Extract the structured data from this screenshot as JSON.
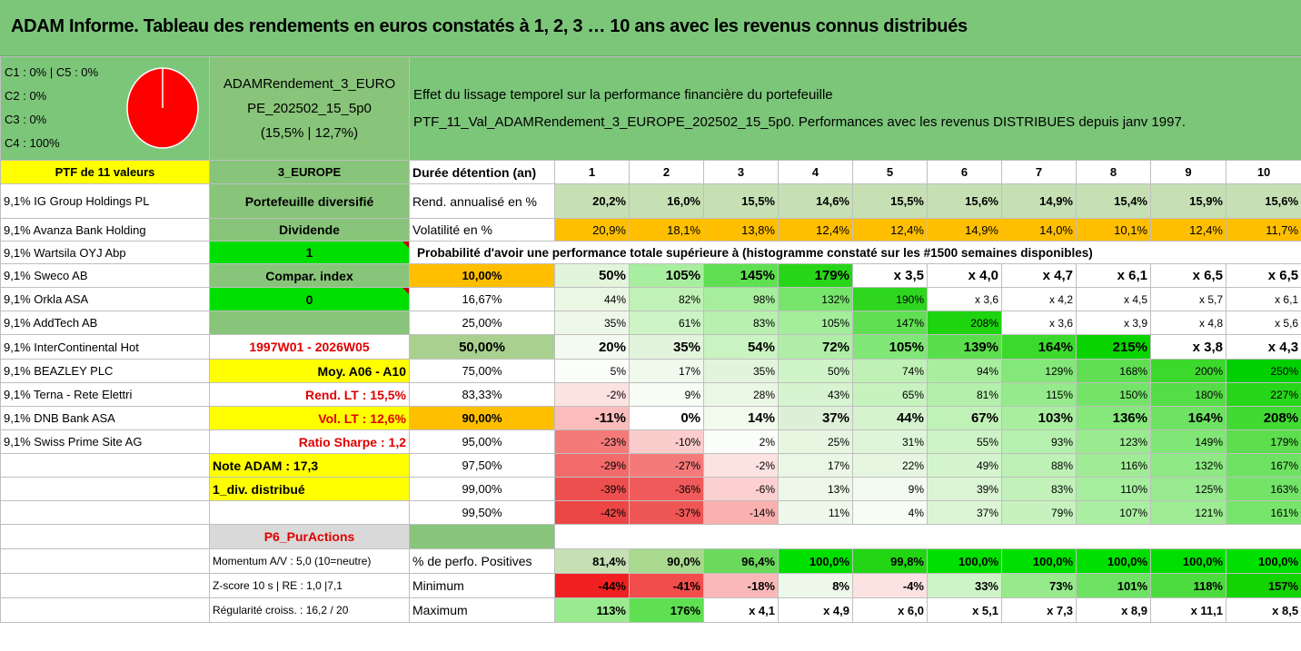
{
  "title": "ADAM Informe. Tableau des rendements en euros constatés à 1, 2, 3 … 10 ans avec les revenus connus distribués",
  "legend": [
    "C1 : 0% | C5 : 0%",
    "C2 : 0%",
    "C3 : 0%",
    "C4 : 100%"
  ],
  "pie": {
    "label": "pie-chart",
    "color": "#ff0000",
    "slices": [
      0,
      0,
      0,
      100
    ]
  },
  "portfolio_name": [
    "ADAMRendement_3_EURO",
    "PE_202502_15_5p0",
    "(15,5% | 12,7%)"
  ],
  "effect_text": [
    "Effet du lissage temporel sur la performance financière du portefeuille",
    "PTF_11_Val_ADAMRendement_3_EUROPE_202502_15_5p0. Performances avec les revenus DISTRIBUES depuis janv 1997."
  ],
  "ptf_label": "PTF de 11 valeurs",
  "region": "3_EUROPE",
  "duration_label": "Durée détention (an)",
  "years": [
    "1",
    "2",
    "3",
    "4",
    "5",
    "6",
    "7",
    "8",
    "9",
    "10"
  ],
  "holdings": [
    "9,1% IG Group Holdings PL",
    "9,1% Avanza Bank Holding",
    "9,1% Wartsila OYJ Abp",
    "9,1% Sweco AB",
    "9,1% Orkla ASA",
    "9,1% AddTech AB",
    "9,1% InterContinental Hot",
    "9,1% BEAZLEY PLC",
    "9,1% Terna - Rete Elettri",
    "9,1% DNB Bank ASA",
    "9,1% Swiss Prime Site AG"
  ],
  "side_labels": {
    "diversified": "Portefeuille diversifié",
    "dividend": "Dividende",
    "dividend_value": "1",
    "compar_index": "Compar. index",
    "compar_value": "0",
    "blank": "",
    "period": "1997W01 - 2026W05",
    "moy": "Moy. A06 - A10",
    "rend_lt": "Rend. LT : 15,5%",
    "vol_lt": "Vol. LT : 12,6%",
    "sharpe": "Ratio Sharpe : 1,2",
    "note": "Note ADAM : 17,3",
    "div": "1_div. distribué",
    "p6": "P6_PurActions",
    "momentum": "Momentum A/V : 5,0 (10=neutre)",
    "zscore": "Z-score 10 s | RE : 1,0 |7,1",
    "regularite": "Régularité croiss. : 16,2 / 20"
  },
  "rend": {
    "label": "Rend. annualisé en %",
    "values": [
      "20,2%",
      "16,0%",
      "15,5%",
      "14,6%",
      "15,5%",
      "15,6%",
      "14,9%",
      "15,4%",
      "15,9%",
      "15,6%"
    ]
  },
  "vol": {
    "label": "Volatilité en %",
    "values": [
      "20,9%",
      "18,1%",
      "13,8%",
      "12,4%",
      "12,4%",
      "14,9%",
      "14,0%",
      "10,1%",
      "12,4%",
      "11,7%"
    ]
  },
  "prob_header": "Probabilité d'avoir une performance totale supérieure à (histogramme constaté sur les #1500 semaines disponibles)",
  "prob_rows": [
    {
      "p": "10,00%",
      "values": [
        "50%",
        "105%",
        "145%",
        "179%",
        "x 3,5",
        "x 4,0",
        "x 4,7",
        "x 6,1",
        "x 6,5",
        "x 6,5"
      ]
    },
    {
      "p": "16,67%",
      "values": [
        "44%",
        "82%",
        "98%",
        "132%",
        "190%",
        "x 3,6",
        "x 4,2",
        "x 4,5",
        "x 5,7",
        "x 6,1"
      ]
    },
    {
      "p": "25,00%",
      "values": [
        "35%",
        "61%",
        "83%",
        "105%",
        "147%",
        "208%",
        "x 3,6",
        "x 3,9",
        "x 4,8",
        "x 5,6"
      ]
    },
    {
      "p": "50,00%",
      "values": [
        "20%",
        "35%",
        "54%",
        "72%",
        "105%",
        "139%",
        "164%",
        "215%",
        "x 3,8",
        "x 4,3"
      ]
    },
    {
      "p": "75,00%",
      "values": [
        "5%",
        "17%",
        "35%",
        "50%",
        "74%",
        "94%",
        "129%",
        "168%",
        "200%",
        "250%"
      ]
    },
    {
      "p": "83,33%",
      "values": [
        "-2%",
        "9%",
        "28%",
        "43%",
        "65%",
        "81%",
        "115%",
        "150%",
        "180%",
        "227%"
      ]
    },
    {
      "p": "90,00%",
      "values": [
        "-11%",
        "0%",
        "14%",
        "37%",
        "44%",
        "67%",
        "103%",
        "136%",
        "164%",
        "208%"
      ]
    },
    {
      "p": "95,00%",
      "values": [
        "-23%",
        "-10%",
        "2%",
        "25%",
        "31%",
        "55%",
        "93%",
        "123%",
        "149%",
        "179%"
      ]
    },
    {
      "p": "97,50%",
      "values": [
        "-29%",
        "-27%",
        "-2%",
        "17%",
        "22%",
        "49%",
        "88%",
        "116%",
        "132%",
        "167%"
      ]
    },
    {
      "p": "99,00%",
      "values": [
        "-39%",
        "-36%",
        "-6%",
        "13%",
        "9%",
        "39%",
        "83%",
        "110%",
        "125%",
        "163%"
      ]
    },
    {
      "p": "99,50%",
      "values": [
        "-42%",
        "-37%",
        "-14%",
        "11%",
        "4%",
        "37%",
        "79%",
        "107%",
        "121%",
        "161%"
      ]
    }
  ],
  "stats": [
    {
      "label": "% de perfo. Positives",
      "values": [
        "81,4%",
        "90,0%",
        "96,4%",
        "100,0%",
        "99,8%",
        "100,0%",
        "100,0%",
        "100,0%",
        "100,0%",
        "100,0%"
      ]
    },
    {
      "label": "Minimum",
      "values": [
        "-44%",
        "-41%",
        "-18%",
        "8%",
        "-4%",
        "33%",
        "73%",
        "101%",
        "118%",
        "157%"
      ]
    },
    {
      "label": "Maximum",
      "values": [
        "113%",
        "176%",
        "x 4,1",
        "x 4,9",
        "x 6,0",
        "x 5,1",
        "x 7,3",
        "x 8,9",
        "x 11,1",
        "x 8,5"
      ]
    }
  ],
  "colors": {
    "header_green": "#7cc67a",
    "bright_green": "#00e000",
    "yellow": "#ffff00",
    "orange": "#ffbf00",
    "light_green": "#c6e0b4",
    "red_text": "#e00000"
  },
  "cell_colors": {
    "rend": [
      "#c6e0b4",
      "#c6e0b4",
      "#c6e0b4",
      "#c6e0b4",
      "#c6e0b4",
      "#c6e0b4",
      "#c6e0b4",
      "#c6e0b4",
      "#c6e0b4",
      "#c6e0b4"
    ],
    "vol": [
      "#ffbf00",
      "#ffbf00",
      "#ffbf00",
      "#ffbf00",
      "#ffbf00",
      "#ffbf00",
      "#ffbf00",
      "#ffbf00",
      "#ffbf00",
      "#ffbf00"
    ],
    "prob": [
      [
        "#e2f5dc",
        "#a8eea0",
        "#5fe052",
        "#28d619",
        "#ffffff",
        "#ffffff",
        "#ffffff",
        "#ffffff",
        "#ffffff",
        "#ffffff"
      ],
      [
        "#e9f7e4",
        "#c0f1b7",
        "#a6ee9e",
        "#77e56c",
        "#2ed620",
        "#ffffff",
        "#ffffff",
        "#ffffff",
        "#ffffff",
        "#ffffff"
      ],
      [
        "#eef8ea",
        "#cdf3c6",
        "#b8f0b0",
        "#a3ed9b",
        "#60df53",
        "#1ed40f",
        "#ffffff",
        "#ffffff",
        "#ffffff",
        "#ffffff"
      ],
      [
        "#f3faf0",
        "#e2f5dc",
        "#c9f3c0",
        "#b0eea7",
        "#80e675",
        "#5bde4c",
        "#3bd92c",
        "#0ad400",
        "#ffffff",
        "#ffffff"
      ],
      [
        "#fbfdfa",
        "#f0f9ec",
        "#e2f5dc",
        "#cff3c8",
        "#bff1b7",
        "#a9ee9f",
        "#84e779",
        "#60df53",
        "#3bd92c",
        "#00d000"
      ],
      [
        "#fde2e2",
        "#f7fcf5",
        "#eaf7e5",
        "#d6f4cf",
        "#c6f2be",
        "#b4efab",
        "#95ea8b",
        "#74e469",
        "#55dd47",
        "#27d619"
      ],
      [
        "#fbbcbc",
        "#ffffff",
        "#f2faee",
        "#deefd7",
        "#d5f4ce",
        "#c0f1b7",
        "#a9ee9f",
        "#86e77b",
        "#6ee263",
        "#41da32"
      ],
      [
        "#f47a7a",
        "#fbcccc",
        "#fbfdfa",
        "#e6f6e0",
        "#dff5d9",
        "#cdf3c6",
        "#b6f0ae",
        "#9aeb90",
        "#80e675",
        "#5cde4e"
      ],
      [
        "#f26a6a",
        "#f47a7a",
        "#fde2e2",
        "#eaf7e5",
        "#e6f6e0",
        "#d4f4cd",
        "#bdf1b5",
        "#a0ec96",
        "#8ee984",
        "#6ee263"
      ],
      [
        "#ee4f4f",
        "#f05a5a",
        "#fcd0d0",
        "#edf8e8",
        "#f3faf0",
        "#daf5d3",
        "#c2f1b9",
        "#a6ee9e",
        "#98ea8e",
        "#74e469"
      ],
      [
        "#ec4646",
        "#ef5656",
        "#fbb0b0",
        "#eff9eb",
        "#f7fcf5",
        "#dcf5d5",
        "#c6f2be",
        "#aaee a1",
        "#9deb93",
        "#77e56c"
      ]
    ],
    "stats": [
      [
        "#c6e0b4",
        "#a9d98e",
        "#6ad95c",
        "#00e000",
        "#22d614",
        "#00e000",
        "#00e000",
        "#00e000",
        "#00e000",
        "#00e000"
      ],
      [
        "#f02020",
        "#f24d4d",
        "#fbb8b8",
        "#eef8ea",
        "#fde2e2",
        "#cdf3c6",
        "#97ea8c",
        "#6ee263",
        "#4cdc3e",
        "#12d403"
      ],
      [
        "#9aeb90",
        "#5fe052",
        "#ffffff",
        "#ffffff",
        "#ffffff",
        "#ffffff",
        "#ffffff",
        "#ffffff",
        "#ffffff",
        "#ffffff"
      ]
    ]
  }
}
